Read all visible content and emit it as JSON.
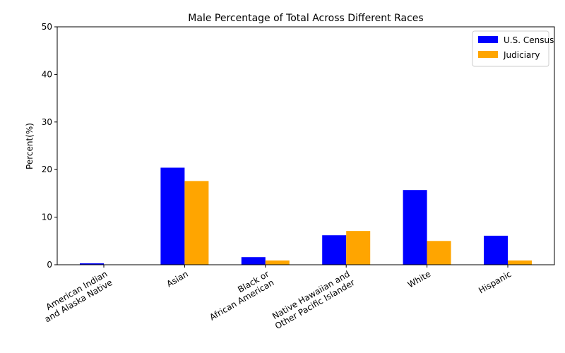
{
  "chart_data": {
    "type": "bar",
    "title": "Male Percentage of Total Across Different Races",
    "xlabel": "",
    "ylabel": "Percent(%)",
    "ylim": [
      0,
      50
    ],
    "yticks": [
      0,
      10,
      20,
      30,
      40,
      50
    ],
    "grid": false,
    "legend_position": "top-right",
    "categories": [
      "American Indian\nand Alaska Native",
      "Asian",
      "Black or\nAfrican American",
      "Native Hawaiian and\nOther Pacific Islander",
      "White",
      "Hispanic"
    ],
    "series": [
      {
        "name": "U.S. Census",
        "color": "#0000ff",
        "values": [
          0.3,
          20.4,
          1.6,
          6.2,
          15.7,
          6.1
        ]
      },
      {
        "name": "Judiciary",
        "color": "#ffa500",
        "values": [
          0.0,
          17.6,
          0.9,
          7.1,
          5.0,
          0.9
        ]
      }
    ]
  }
}
